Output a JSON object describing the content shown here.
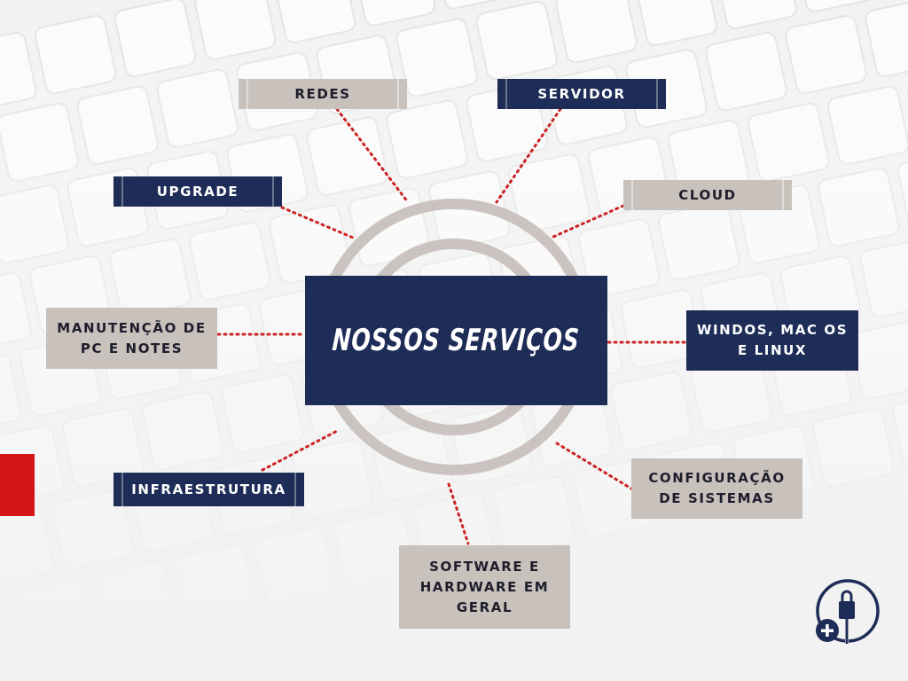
{
  "title": "NOSSOS SERVIÇOS",
  "colors": {
    "navy": "#1e2d57",
    "taupe": "#c8c1bc",
    "accent_red": "#d31515",
    "connector": "#cc2222",
    "rings": "#cbc3bf"
  },
  "services": {
    "redes": "REDES",
    "servidor": "SERVIDOR",
    "upgrade": "UPGRADE",
    "cloud": "CLOUD",
    "manutencao_line1": "MANUTENÇÃO DE",
    "manutencao_line2": "PC E NOTES",
    "sistemas_line1": "WINDOS, MAC OS",
    "sistemas_line2": "E LINUX",
    "infraestrutura": "INFRAESTRUTURA",
    "configuracao_line1": "CONFIGURAÇÃO",
    "configuracao_line2": "DE SISTEMAS",
    "software_line1": "SOFTWARE E",
    "software_line2": "HARDWARE EM",
    "software_line3": "GERAL"
  },
  "icons": {
    "logo": "usb-lock-plus-icon"
  }
}
